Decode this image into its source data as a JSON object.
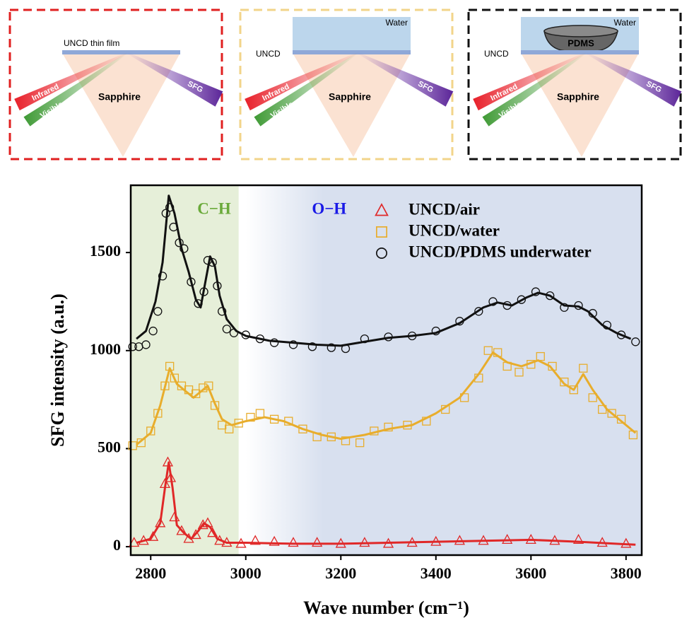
{
  "diagrams": [
    {
      "film_label": "UNCD thin film",
      "prism": "Sapphire",
      "beams": [
        "Infrared",
        "Visible",
        "SFG"
      ]
    },
    {
      "medium": "Water",
      "film_label": "UNCD",
      "prism": "Sapphire",
      "beams": [
        "Infrared",
        "Visible",
        "SFG"
      ]
    },
    {
      "medium": "Water",
      "object": "PDMS",
      "film_label": "UNCD",
      "prism": "Sapphire",
      "beams": [
        "Infrared",
        "Visible",
        "SFG"
      ]
    }
  ],
  "chart_data": {
    "type": "scatter",
    "xlabel": "Wave number (cm⁻¹)",
    "ylabel": "SFG intensity (a.u.)",
    "xlim": [
      2758,
      3833
    ],
    "ylim": [
      -43,
      1843
    ],
    "xticks": [
      2800,
      3000,
      3200,
      3400,
      3600,
      3800
    ],
    "yticks": [
      0,
      500,
      1000,
      1500
    ],
    "legend": "upper right",
    "regions": [
      {
        "label": "C−H",
        "color": "#e6efd9",
        "label_color": "#6aaa3a",
        "range": [
          2758,
          2985
        ]
      },
      {
        "label": "O−H",
        "color": "#d8e0ef",
        "label_color": "#1a1ae6",
        "range": [
          3000,
          3833
        ]
      }
    ],
    "series": [
      {
        "name": "UNCD/air",
        "color": "#e02828",
        "marker": "triangle",
        "x": [
          2765,
          2785,
          2805,
          2820,
          2830,
          2836,
          2842,
          2850,
          2865,
          2880,
          2895,
          2910,
          2920,
          2930,
          2945,
          2960,
          2990,
          3020,
          3060,
          3100,
          3150,
          3200,
          3250,
          3300,
          3350,
          3400,
          3450,
          3500,
          3550,
          3600,
          3650,
          3700,
          3750,
          3800
        ],
        "values": [
          20,
          30,
          50,
          120,
          320,
          430,
          350,
          150,
          80,
          40,
          60,
          110,
          120,
          70,
          30,
          20,
          15,
          30,
          25,
          20,
          20,
          15,
          20,
          15,
          20,
          25,
          30,
          30,
          35,
          35,
          30,
          35,
          20,
          15
        ],
        "fit": {
          "x": [
            2770,
            2800,
            2820,
            2830,
            2838,
            2846,
            2855,
            2870,
            2885,
            2900,
            2912,
            2925,
            2940,
            2960,
            3000,
            3100,
            3200,
            3300,
            3400,
            3500,
            3600,
            3700,
            3820
          ],
          "values": [
            20,
            40,
            120,
            300,
            430,
            300,
            110,
            70,
            40,
            80,
            120,
            100,
            40,
            20,
            20,
            15,
            15,
            20,
            25,
            30,
            35,
            25,
            10
          ]
        }
      },
      {
        "name": "UNCD/water",
        "color": "#e8ad2c",
        "marker": "square",
        "x": [
          2762,
          2780,
          2800,
          2815,
          2830,
          2840,
          2850,
          2865,
          2880,
          2895,
          2910,
          2922,
          2935,
          2950,
          2965,
          2985,
          3010,
          3030,
          3060,
          3090,
          3120,
          3150,
          3180,
          3210,
          3240,
          3270,
          3300,
          3340,
          3380,
          3420,
          3460,
          3490,
          3510,
          3530,
          3550,
          3575,
          3600,
          3620,
          3645,
          3670,
          3690,
          3710,
          3730,
          3750,
          3770,
          3790,
          3815
        ],
        "values": [
          515,
          530,
          590,
          680,
          820,
          920,
          860,
          820,
          800,
          780,
          810,
          820,
          720,
          620,
          600,
          630,
          660,
          680,
          650,
          640,
          600,
          560,
          560,
          540,
          530,
          590,
          610,
          620,
          640,
          700,
          760,
          860,
          1000,
          990,
          920,
          890,
          930,
          970,
          920,
          840,
          800,
          910,
          760,
          700,
          680,
          650,
          570
        ],
        "fit": {
          "x": [
            2770,
            2800,
            2820,
            2840,
            2855,
            2870,
            2890,
            2905,
            2920,
            2935,
            2950,
            2970,
            3000,
            3040,
            3080,
            3120,
            3160,
            3200,
            3250,
            3300,
            3350,
            3400,
            3450,
            3490,
            3520,
            3550,
            3580,
            3615,
            3640,
            3670,
            3690,
            3710,
            3730,
            3760,
            3790,
            3820
          ],
          "values": [
            520,
            580,
            720,
            910,
            830,
            800,
            760,
            790,
            820,
            730,
            650,
            620,
            640,
            660,
            640,
            600,
            570,
            550,
            570,
            600,
            620,
            680,
            760,
            880,
            990,
            940,
            920,
            950,
            920,
            830,
            800,
            880,
            800,
            700,
            640,
            580
          ]
        }
      },
      {
        "name": "UNCD/PDMS underwater",
        "color": "#111111",
        "marker": "circle",
        "x": [
          2762,
          2775,
          2790,
          2805,
          2815,
          2825,
          2832,
          2840,
          2848,
          2860,
          2870,
          2885,
          2900,
          2912,
          2920,
          2930,
          2940,
          2950,
          2960,
          2975,
          3000,
          3030,
          3060,
          3100,
          3140,
          3180,
          3210,
          3250,
          3300,
          3350,
          3400,
          3450,
          3490,
          3520,
          3550,
          3580,
          3610,
          3640,
          3670,
          3700,
          3730,
          3760,
          3790,
          3820
        ],
        "values": [
          1020,
          1020,
          1030,
          1100,
          1200,
          1380,
          1700,
          1730,
          1630,
          1550,
          1520,
          1350,
          1240,
          1300,
          1460,
          1450,
          1330,
          1200,
          1110,
          1090,
          1080,
          1060,
          1040,
          1030,
          1020,
          1015,
          1010,
          1060,
          1070,
          1075,
          1100,
          1150,
          1200,
          1250,
          1230,
          1260,
          1300,
          1280,
          1220,
          1230,
          1190,
          1130,
          1080,
          1045
        ],
        "fit": {
          "x": [
            2770,
            2790,
            2810,
            2825,
            2838,
            2850,
            2865,
            2880,
            2895,
            2905,
            2915,
            2925,
            2935,
            2945,
            2960,
            2980,
            3000,
            3050,
            3100,
            3150,
            3200,
            3250,
            3300,
            3350,
            3400,
            3450,
            3500,
            3530,
            3560,
            3590,
            3615,
            3640,
            3670,
            3700,
            3720,
            3750,
            3780,
            3810
          ],
          "values": [
            1060,
            1100,
            1250,
            1450,
            1790,
            1700,
            1520,
            1400,
            1260,
            1220,
            1350,
            1480,
            1430,
            1280,
            1160,
            1100,
            1075,
            1050,
            1040,
            1030,
            1025,
            1045,
            1065,
            1075,
            1090,
            1140,
            1220,
            1245,
            1230,
            1270,
            1295,
            1280,
            1230,
            1225,
            1200,
            1130,
            1090,
            1060
          ]
        }
      }
    ]
  }
}
